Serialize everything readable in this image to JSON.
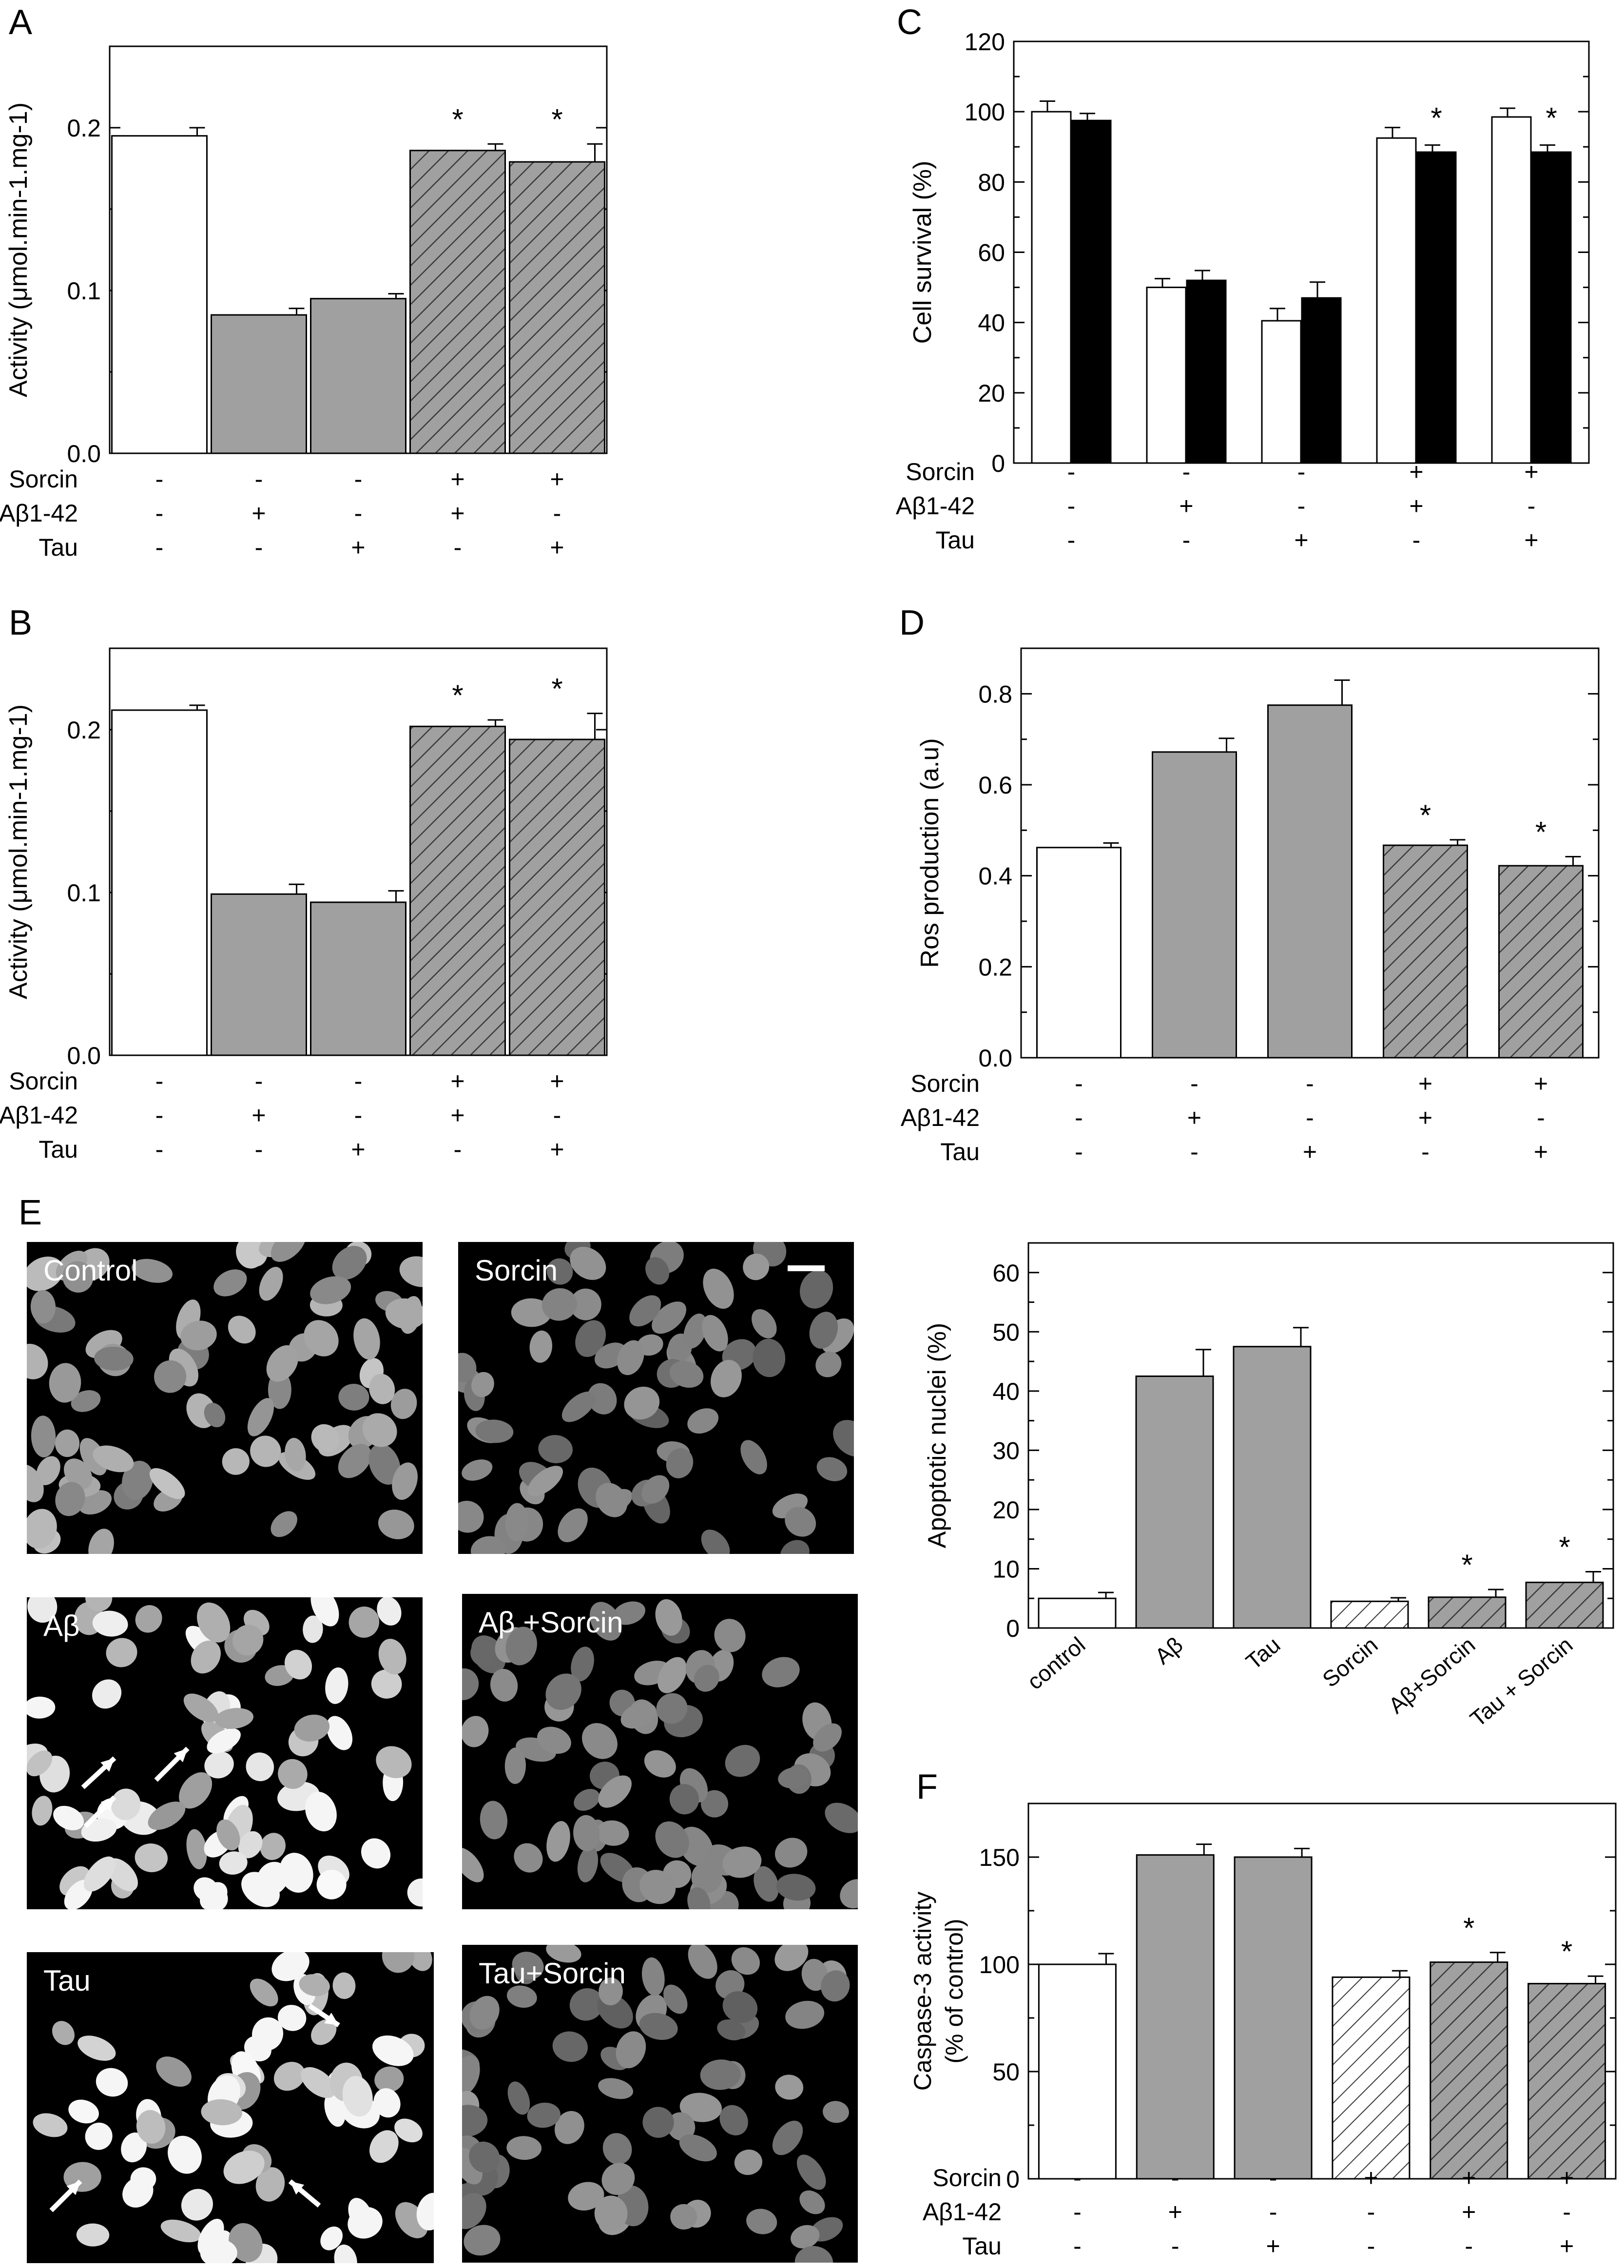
{
  "panels": {
    "A": "A",
    "B": "B",
    "C": "C",
    "D": "D",
    "E": "E",
    "F": "F"
  },
  "colors": {
    "white_bar": "#ffffff",
    "gray_bar": "#a0a0a0",
    "black_bar": "#000000",
    "hatch_line": "#3a3a3a"
  },
  "micro_labels": [
    "Control",
    "Sorcin",
    "Aβ",
    "Aβ +Sorcin",
    "Tau",
    "Tau+Sorcin"
  ],
  "chart_data": [
    {
      "id": "A",
      "type": "bar",
      "ylabel": "Activity (μmol.min-1.mg-1)",
      "ylim": [
        0,
        0.25
      ],
      "yticks": [
        "0.0",
        "0.1",
        "0.2"
      ],
      "yticks_values": [
        0,
        0.1,
        0.2
      ],
      "condition_labels": [
        "Sorcin",
        "Aβ1-42",
        "Tau"
      ],
      "conditions": [
        [
          "-",
          "-",
          "-"
        ],
        [
          "-",
          "+",
          "-"
        ],
        [
          "-",
          "-",
          "+"
        ],
        [
          "+",
          "+",
          "-"
        ],
        [
          "+",
          "-",
          "+"
        ]
      ],
      "values": [
        0.195,
        0.085,
        0.095,
        0.186,
        0.179
      ],
      "errors": [
        0.005,
        0.004,
        0.003,
        0.004,
        0.011
      ],
      "fills": [
        "white",
        "gray",
        "gray",
        "hatch",
        "hatch"
      ],
      "significance": [
        false,
        false,
        false,
        true,
        true
      ],
      "star": "*"
    },
    {
      "id": "B",
      "type": "bar",
      "ylabel": "Activity (μmol.min-1.mg-1)",
      "ylim": [
        0,
        0.25
      ],
      "yticks": [
        "0.0",
        "0.1",
        "0.2"
      ],
      "yticks_values": [
        0,
        0.1,
        0.2
      ],
      "condition_labels": [
        "Sorcin",
        "Aβ1-42",
        "Tau"
      ],
      "conditions": [
        [
          "-",
          "-",
          "-"
        ],
        [
          "-",
          "+",
          "-"
        ],
        [
          "-",
          "-",
          "+"
        ],
        [
          "+",
          "+",
          "-"
        ],
        [
          "+",
          "-",
          "+"
        ]
      ],
      "values": [
        0.212,
        0.099,
        0.094,
        0.202,
        0.194
      ],
      "errors": [
        0.003,
        0.006,
        0.007,
        0.004,
        0.016
      ],
      "fills": [
        "white",
        "gray",
        "gray",
        "hatch",
        "hatch"
      ],
      "significance": [
        false,
        false,
        false,
        true,
        true
      ],
      "star": "*"
    },
    {
      "id": "C",
      "type": "bar",
      "ylabel": "Cell survival (%)",
      "ylim": [
        0,
        120
      ],
      "yticks": [
        "0",
        "20",
        "40",
        "60",
        "80",
        "100",
        "120"
      ],
      "yticks_values": [
        0,
        20,
        40,
        60,
        80,
        100,
        120
      ],
      "condition_labels": [
        "Sorcin",
        "Aβ1-42",
        "Tau"
      ],
      "conditions": [
        [
          "-",
          "-",
          "-"
        ],
        [
          "-",
          "+",
          "-"
        ],
        [
          "-",
          "-",
          "+"
        ],
        [
          "+",
          "+",
          "-"
        ],
        [
          "+",
          "-",
          "+"
        ]
      ],
      "series": [
        {
          "fill": "white",
          "values": [
            100,
            50,
            40.5,
            92.5,
            98.5
          ],
          "errors": [
            3,
            2.5,
            3.5,
            3,
            2.5
          ]
        },
        {
          "fill": "black",
          "values": [
            97.5,
            52,
            47,
            88.5,
            88.5
          ],
          "errors": [
            2,
            2.8,
            4.5,
            2,
            2
          ]
        }
      ],
      "significance": [
        false,
        false,
        false,
        true,
        true
      ],
      "star": "*"
    },
    {
      "id": "D",
      "type": "bar",
      "ylabel": "Ros production (a.u)",
      "ylim": [
        0,
        0.9
      ],
      "yticks": [
        "0.0",
        "0.2",
        "0.4",
        "0.6",
        "0.8"
      ],
      "yticks_values": [
        0,
        0.2,
        0.4,
        0.6,
        0.8
      ],
      "condition_labels": [
        "Sorcin",
        "Aβ1-42",
        "Tau"
      ],
      "conditions": [
        [
          "-",
          "-",
          "-"
        ],
        [
          "-",
          "+",
          "-"
        ],
        [
          "-",
          "-",
          "+"
        ],
        [
          "+",
          "+",
          "-"
        ],
        [
          "+",
          "-",
          "+"
        ]
      ],
      "values": [
        0.462,
        0.672,
        0.775,
        0.467,
        0.422
      ],
      "errors": [
        0.01,
        0.03,
        0.055,
        0.012,
        0.02
      ],
      "fills": [
        "white",
        "gray",
        "gray",
        "hatch",
        "hatch"
      ],
      "significance": [
        false,
        false,
        false,
        true,
        true
      ],
      "star": "*"
    },
    {
      "id": "E",
      "type": "bar",
      "ylabel": "Apoptotic nuclei (%)",
      "ylim": [
        0,
        65
      ],
      "yticks": [
        "0",
        "10",
        "20",
        "30",
        "40",
        "50",
        "60"
      ],
      "yticks_values": [
        0,
        10,
        20,
        30,
        40,
        50,
        60
      ],
      "categories": [
        "control",
        "Aβ",
        "Tau",
        "Sorcin",
        "Aβ+Sorcin",
        "Tau + Sorcin"
      ],
      "values": [
        5,
        42.5,
        47.5,
        4.5,
        5.2,
        7.7
      ],
      "errors": [
        1,
        4.5,
        3.2,
        0.6,
        1.3,
        1.8
      ],
      "fills": [
        "white",
        "gray",
        "gray",
        "hatch_white",
        "hatch",
        "hatch"
      ],
      "significance": [
        false,
        false,
        false,
        false,
        true,
        true
      ],
      "star": "*"
    },
    {
      "id": "F",
      "type": "bar",
      "ylabel": "Caspase-3 activity (% of control)",
      "ylabel_lines": [
        "Caspase-3 activity",
        "(% of control)"
      ],
      "ylim": [
        0,
        175
      ],
      "yticks": [
        "0",
        "50",
        "100",
        "150"
      ],
      "yticks_values": [
        0,
        50,
        100,
        150
      ],
      "condition_labels": [
        "Sorcin",
        "Aβ1-42",
        "Tau"
      ],
      "conditions": [
        [
          "-",
          "-",
          "-"
        ],
        [
          "-",
          "+",
          "-"
        ],
        [
          "-",
          "-",
          "+"
        ],
        [
          "+",
          "-",
          "-"
        ],
        [
          "+",
          "+",
          "-"
        ],
        [
          "+",
          "-",
          "+"
        ]
      ],
      "values": [
        100,
        151,
        150,
        94,
        101,
        91
      ],
      "errors": [
        5,
        5,
        4,
        3,
        4.5,
        3.5
      ],
      "fills": [
        "white",
        "gray",
        "gray",
        "hatch_white",
        "hatch",
        "hatch"
      ],
      "significance": [
        false,
        false,
        false,
        false,
        true,
        true
      ],
      "star": "*"
    }
  ]
}
